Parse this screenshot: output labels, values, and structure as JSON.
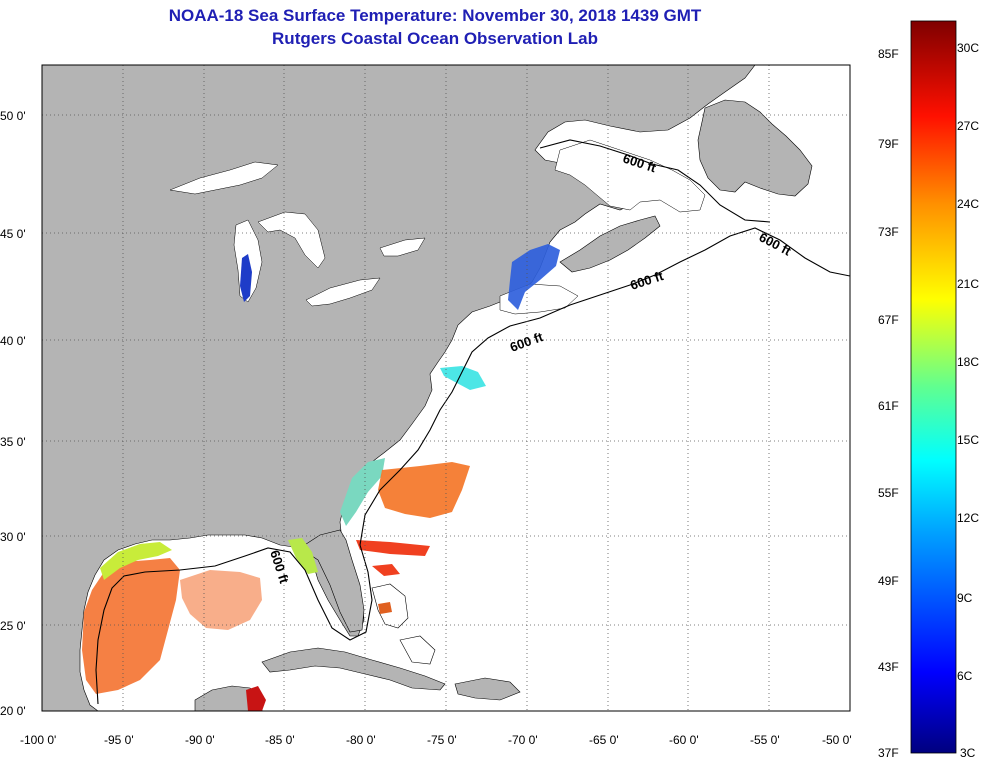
{
  "title": {
    "line1": "NOAA-18 Sea Surface Temperature:  November 30, 2018 1439 GMT",
    "line2": "Rutgers Coastal Ocean Observation Lab"
  },
  "axes": {
    "lat_labels": [
      "50 0'",
      "45 0'",
      "40 0'",
      "35 0'",
      "30 0'",
      "25 0'",
      "20 0'"
    ],
    "lon_labels": [
      "-100 0'",
      "-95 0'",
      "-90 0'",
      "-85 0'",
      "-80 0'",
      "-75 0'",
      "-70 0'",
      "-65 0'",
      "-60 0'",
      "-55 0'",
      "-50 0'"
    ]
  },
  "isobath": {
    "labels": [
      "600 ft",
      "600 ft",
      "600 ft",
      "600 ft",
      "600 ft"
    ]
  },
  "colorbar": {
    "f_labels": [
      "85F",
      "79F",
      "73F",
      "67F",
      "61F",
      "55F",
      "49F",
      "43F",
      "37F"
    ],
    "c_labels": [
      "30C",
      "27C",
      "24C",
      "21C",
      "18C",
      "15C",
      "12C",
      "9C",
      "6C",
      "3C"
    ]
  },
  "colors": {
    "land": "#b4b4b4",
    "water": "#ffffff",
    "title": "#1f1fb4"
  }
}
